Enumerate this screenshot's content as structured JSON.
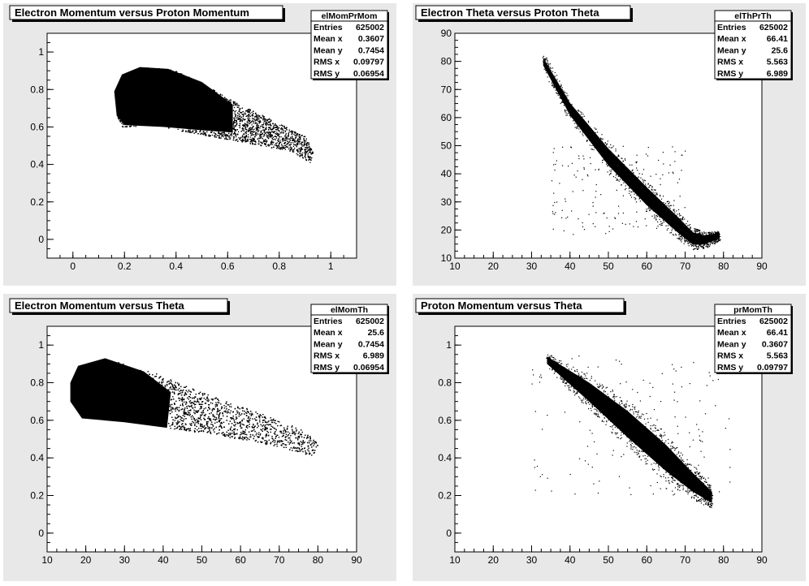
{
  "chart_data": [
    {
      "type": "scatter",
      "title": "Electron Momentum versus Proton Momentum",
      "stats": {
        "name": "elMomPrMom",
        "rows": [
          [
            "Entries",
            "625002"
          ],
          [
            "Mean x",
            "0.3607"
          ],
          [
            "Mean y",
            "0.7454"
          ],
          [
            "RMS x",
            "0.09797"
          ],
          [
            "RMS y",
            "0.06954"
          ]
        ]
      },
      "xlim": [
        -0.1,
        1.1
      ],
      "ylim": [
        -0.1,
        1.1
      ],
      "xticks": [
        0,
        0.2,
        0.4,
        0.6,
        0.8,
        1
      ],
      "xtick_labels": [
        "0",
        "0.2",
        "0.4",
        "0.6",
        "0.8",
        "1"
      ],
      "yticks": [
        0,
        0.2,
        0.4,
        0.6,
        0.8,
        1
      ],
      "ytick_labels": [
        "0",
        "0.2",
        "0.4",
        "0.6",
        "0.8",
        "1"
      ],
      "data_outline": [
        [
          0.17,
          0.66
        ],
        [
          0.19,
          0.6
        ],
        [
          0.3,
          0.61
        ],
        [
          0.5,
          0.56
        ],
        [
          0.7,
          0.51
        ],
        [
          0.85,
          0.47
        ],
        [
          0.92,
          0.41
        ],
        [
          0.93,
          0.47
        ],
        [
          0.9,
          0.55
        ],
        [
          0.8,
          0.62
        ],
        [
          0.62,
          0.74
        ],
        [
          0.48,
          0.85
        ],
        [
          0.38,
          0.91
        ],
        [
          0.26,
          0.92
        ],
        [
          0.19,
          0.88
        ],
        [
          0.16,
          0.79
        ]
      ],
      "data_core": [
        [
          0.17,
          0.66
        ],
        [
          0.2,
          0.61
        ],
        [
          0.35,
          0.6
        ],
        [
          0.52,
          0.58
        ],
        [
          0.62,
          0.57
        ],
        [
          0.62,
          0.72
        ],
        [
          0.5,
          0.84
        ],
        [
          0.37,
          0.91
        ],
        [
          0.26,
          0.92
        ],
        [
          0.19,
          0.88
        ],
        [
          0.16,
          0.79
        ]
      ]
    },
    {
      "type": "scatter",
      "title": "Electron Theta versus Proton Theta",
      "stats": {
        "name": "elThPrTh",
        "rows": [
          [
            "Entries",
            "625002"
          ],
          [
            "Mean x",
            "66.41"
          ],
          [
            "Mean y",
            "25.6"
          ],
          [
            "RMS x",
            "5.563"
          ],
          [
            "RMS y",
            "6.989"
          ]
        ]
      },
      "xlim": [
        10,
        90
      ],
      "ylim": [
        10,
        90
      ],
      "xticks": [
        10,
        20,
        30,
        40,
        50,
        60,
        70,
        80,
        90
      ],
      "xtick_labels": [
        "10",
        "20",
        "30",
        "40",
        "50",
        "60",
        "70",
        "80",
        "90"
      ],
      "yticks": [
        10,
        20,
        30,
        40,
        50,
        60,
        70,
        80,
        90
      ],
      "ytick_labels": [
        "10",
        "20",
        "30",
        "40",
        "50",
        "60",
        "70",
        "80",
        "90"
      ],
      "band": [
        [
          33,
          80
        ],
        [
          40,
          63
        ],
        [
          50,
          46
        ],
        [
          60,
          32
        ],
        [
          68,
          22
        ],
        [
          72,
          17
        ],
        [
          75,
          16.5
        ],
        [
          79,
          18
        ]
      ],
      "band_halfwidth": [
        1.4,
        2.2,
        3.0,
        3.2,
        2.8,
        2.2,
        1.6,
        1.0
      ],
      "scatter_region": {
        "xmin": 35,
        "xmax": 70,
        "ymin": 18,
        "ymax": 50
      }
    },
    {
      "type": "scatter",
      "title": "Electron Momentum versus Theta",
      "stats": {
        "name": "elMomTh",
        "rows": [
          [
            "Entries",
            "625002"
          ],
          [
            "Mean x",
            "25.6"
          ],
          [
            "Mean y",
            "0.7454"
          ],
          [
            "RMS x",
            "6.989"
          ],
          [
            "RMS y",
            "0.06954"
          ]
        ]
      },
      "xlim": [
        10,
        90
      ],
      "ylim": [
        -0.1,
        1.1
      ],
      "xticks": [
        10,
        20,
        30,
        40,
        50,
        60,
        70,
        80,
        90
      ],
      "xtick_labels": [
        "10",
        "20",
        "30",
        "40",
        "50",
        "60",
        "70",
        "80",
        "90"
      ],
      "yticks": [
        0,
        0.2,
        0.4,
        0.6,
        0.8,
        1
      ],
      "ytick_labels": [
        "0",
        "0.2",
        "0.4",
        "0.6",
        "0.8",
        "1"
      ],
      "data_outline": [
        [
          16,
          0.7
        ],
        [
          19,
          0.61
        ],
        [
          30,
          0.59
        ],
        [
          45,
          0.55
        ],
        [
          60,
          0.5
        ],
        [
          70,
          0.46
        ],
        [
          79,
          0.41
        ],
        [
          80,
          0.48
        ],
        [
          76,
          0.55
        ],
        [
          65,
          0.64
        ],
        [
          50,
          0.75
        ],
        [
          38,
          0.85
        ],
        [
          25,
          0.93
        ],
        [
          18,
          0.89
        ],
        [
          16,
          0.8
        ]
      ],
      "data_core": [
        [
          16,
          0.7
        ],
        [
          19,
          0.61
        ],
        [
          30,
          0.59
        ],
        [
          41,
          0.56
        ],
        [
          42,
          0.75
        ],
        [
          35,
          0.86
        ],
        [
          25,
          0.93
        ],
        [
          18,
          0.89
        ],
        [
          16,
          0.8
        ]
      ]
    },
    {
      "type": "scatter",
      "title": "Proton Momentum versus Theta",
      "stats": {
        "name": "prMomTh",
        "rows": [
          [
            "Entries",
            "625002"
          ],
          [
            "Mean x",
            "66.41"
          ],
          [
            "Mean y",
            "0.3607"
          ],
          [
            "RMS x",
            "5.563"
          ],
          [
            "RMS y",
            "0.09797"
          ]
        ]
      },
      "xlim": [
        10,
        90
      ],
      "ylim": [
        -0.1,
        1.1
      ],
      "xticks": [
        10,
        20,
        30,
        40,
        50,
        60,
        70,
        80,
        90
      ],
      "xtick_labels": [
        "10",
        "20",
        "30",
        "40",
        "50",
        "60",
        "70",
        "80",
        "90"
      ],
      "yticks": [
        0,
        0.2,
        0.4,
        0.6,
        0.8,
        1
      ],
      "ytick_labels": [
        "0",
        "0.2",
        "0.4",
        "0.6",
        "0.8",
        "1"
      ],
      "band": [
        [
          34,
          0.92
        ],
        [
          45,
          0.75
        ],
        [
          55,
          0.58
        ],
        [
          65,
          0.4
        ],
        [
          72,
          0.27
        ],
        [
          77,
          0.19
        ]
      ],
      "band_halfwidth": [
        0.02,
        0.05,
        0.07,
        0.07,
        0.05,
        0.03
      ],
      "scatter_region": {
        "xmin": 30,
        "xmax": 82,
        "ymin": 0.2,
        "ymax": 0.95
      }
    }
  ]
}
